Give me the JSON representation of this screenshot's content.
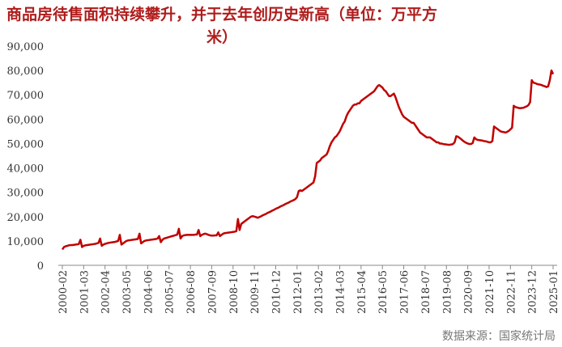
{
  "chart_data": {
    "type": "line",
    "title": "商品房待售面积持续攀升，并于去年创历史新高（单位：万平方米）",
    "source": "数据来源：国家统计局",
    "categories": [
      "2000-02",
      null,
      null,
      null,
      null,
      null,
      null,
      null,
      null,
      null,
      null,
      null,
      null,
      "2001-03",
      null,
      null,
      null,
      null,
      null,
      null,
      null,
      null,
      null,
      null,
      null,
      null,
      "2002-04",
      null,
      null,
      null,
      null,
      null,
      null,
      null,
      null,
      null,
      null,
      null,
      null,
      "2003-05",
      null,
      null,
      null,
      null,
      null,
      null,
      null,
      null,
      null,
      null,
      null,
      null,
      "2004-06",
      null,
      null,
      null,
      null,
      null,
      null,
      null,
      null,
      null,
      null,
      null,
      null,
      "2005-07",
      null,
      null,
      null,
      null,
      null,
      null,
      null,
      null,
      null,
      null,
      null,
      null,
      "2006-08",
      null,
      null,
      null,
      null,
      null,
      null,
      null,
      null,
      null,
      null,
      null,
      null,
      "2007-09",
      null,
      null,
      null,
      null,
      null,
      null,
      null,
      null,
      null,
      null,
      null,
      null,
      "2008-10",
      null,
      null,
      null,
      null,
      null,
      null,
      null,
      null,
      null,
      null,
      null,
      null,
      "2009-11",
      null,
      null,
      null,
      null,
      null,
      null,
      null,
      null,
      null,
      null,
      null,
      null,
      "2010-12",
      null,
      null,
      null,
      null,
      null,
      null,
      null,
      null,
      null,
      null,
      null,
      null,
      "2012-01",
      null,
      null,
      null,
      null,
      null,
      null,
      null,
      null,
      null,
      null,
      null,
      null,
      "2013-02",
      null,
      null,
      null,
      null,
      null,
      null,
      null,
      null,
      null,
      null,
      null,
      null,
      "2014-03",
      null,
      null,
      null,
      null,
      null,
      null,
      null,
      null,
      null,
      null,
      null,
      null,
      "2015-04",
      null,
      null,
      null,
      null,
      null,
      null,
      null,
      null,
      null,
      null,
      null,
      null,
      "2016-05",
      null,
      null,
      null,
      null,
      null,
      null,
      null,
      null,
      null,
      null,
      null,
      null,
      "2017-06",
      null,
      null,
      null,
      null,
      null,
      null,
      null,
      null,
      null,
      null,
      null,
      null,
      "2018-07",
      null,
      null,
      null,
      null,
      null,
      null,
      null,
      null,
      null,
      null,
      null,
      null,
      "2019-08",
      null,
      null,
      null,
      null,
      null,
      null,
      null,
      null,
      null,
      null,
      null,
      null,
      "2020-09",
      null,
      null,
      null,
      null,
      null,
      null,
      null,
      null,
      null,
      null,
      null,
      null,
      "2021-10",
      null,
      null,
      null,
      null,
      null,
      null,
      null,
      null,
      null,
      null,
      null,
      null,
      "2022-11",
      null,
      null,
      null,
      null,
      null,
      null,
      null,
      null,
      null,
      null,
      null,
      null,
      "2023-12",
      null,
      null,
      null,
      null,
      null,
      null,
      null,
      null,
      null,
      null,
      null,
      null,
      "2025-01"
    ],
    "values": [
      6500,
      7500,
      7800,
      8000,
      8200,
      8300,
      8300,
      8400,
      8500,
      8600,
      8700,
      10500,
      7500,
      8000,
      8200,
      8300,
      8400,
      8500,
      8600,
      8700,
      8800,
      9000,
      9200,
      11000,
      8000,
      8500,
      8800,
      9000,
      9200,
      9300,
      9400,
      9500,
      9600,
      9800,
      10000,
      12500,
      8500,
      9000,
      9500,
      10000,
      10200,
      10300,
      10400,
      10500,
      10600,
      10700,
      10800,
      13000,
      9000,
      9500,
      10000,
      10200,
      10300,
      10400,
      10500,
      10600,
      10700,
      10800,
      11000,
      12000,
      9500,
      10500,
      11000,
      11200,
      11400,
      11600,
      11800,
      12000,
      12200,
      12400,
      12600,
      15000,
      11000,
      12000,
      12300,
      12400,
      12500,
      12500,
      12500,
      12500,
      12500,
      12600,
      12600,
      14500,
      12000,
      12500,
      12800,
      13000,
      12800,
      12500,
      12300,
      12200,
      12200,
      12300,
      12300,
      13500,
      12000,
      12500,
      13000,
      13200,
      13300,
      13400,
      13500,
      13600,
      13700,
      13800,
      14000,
      19000,
      14500,
      17000,
      17500,
      18000,
      18500,
      19000,
      19500,
      20000,
      20200,
      20000,
      19800,
      19500,
      19800,
      20100,
      20500,
      20800,
      21100,
      21500,
      21800,
      22100,
      22500,
      22800,
      23200,
      23500,
      23800,
      24200,
      24500,
      24800,
      25200,
      25500,
      25800,
      26200,
      26500,
      26800,
      27200,
      28000,
      30500,
      30800,
      30500,
      31000,
      31500,
      32000,
      32500,
      33000,
      33500,
      34000,
      36500,
      42000,
      42500,
      43000,
      44000,
      44500,
      45000,
      45500,
      47000,
      49000,
      50500,
      51500,
      52500,
      53000,
      54000,
      55000,
      56500,
      58000,
      59000,
      61000,
      62500,
      63500,
      64500,
      65500,
      66000,
      66000,
      66500,
      66500,
      67500,
      68000,
      68500,
      69000,
      69500,
      70000,
      70500,
      71000,
      71500,
      72500,
      73500,
      74000,
      73500,
      73000,
      72000,
      71500,
      70500,
      69500,
      69500,
      70000,
      70500,
      69000,
      67000,
      65000,
      63500,
      62000,
      61000,
      60500,
      60000,
      59500,
      59000,
      58500,
      58500,
      57500,
      56500,
      55500,
      54500,
      54000,
      53500,
      53000,
      52500,
      52500,
      52500,
      52000,
      51500,
      51000,
      50500,
      50500,
      50000,
      50000,
      49800,
      49700,
      49600,
      49500,
      49500,
      49600,
      49800,
      50500,
      53000,
      52800,
      52300,
      51800,
      51200,
      50700,
      50300,
      50000,
      49800,
      49800,
      50200,
      52500,
      51800,
      51500,
      51400,
      51300,
      51200,
      51000,
      50900,
      50700,
      50500,
      50500,
      51000,
      57000,
      56500,
      56000,
      55500,
      55000,
      54800,
      54700,
      54500,
      54800,
      55200,
      55800,
      56500,
      65500,
      65000,
      64800,
      64600,
      64500,
      64600,
      64700,
      65000,
      65300,
      65800,
      67000,
      76000,
      75000,
      74800,
      74500,
      74300,
      74200,
      74000,
      73700,
      73500,
      73200,
      73500,
      76000,
      80000,
      78500
    ],
    "color": "#c00000",
    "ylim": [
      0,
      90000
    ],
    "yticks": [
      0,
      {
        "value": 10000,
        "label": "10,000"
      },
      {
        "value": 20000,
        "label": "20,000"
      },
      {
        "value": 30000,
        "label": "30,000"
      },
      {
        "value": 40000,
        "label": "40,000"
      },
      {
        "value": 50000,
        "label": "50,000"
      },
      {
        "value": 60000,
        "label": "60,000"
      },
      {
        "value": 70000,
        "label": "70,000"
      },
      {
        "value": 80000,
        "label": "80,000"
      },
      {
        "value": 90000,
        "label": "90,000"
      }
    ],
    "grid": false
  }
}
